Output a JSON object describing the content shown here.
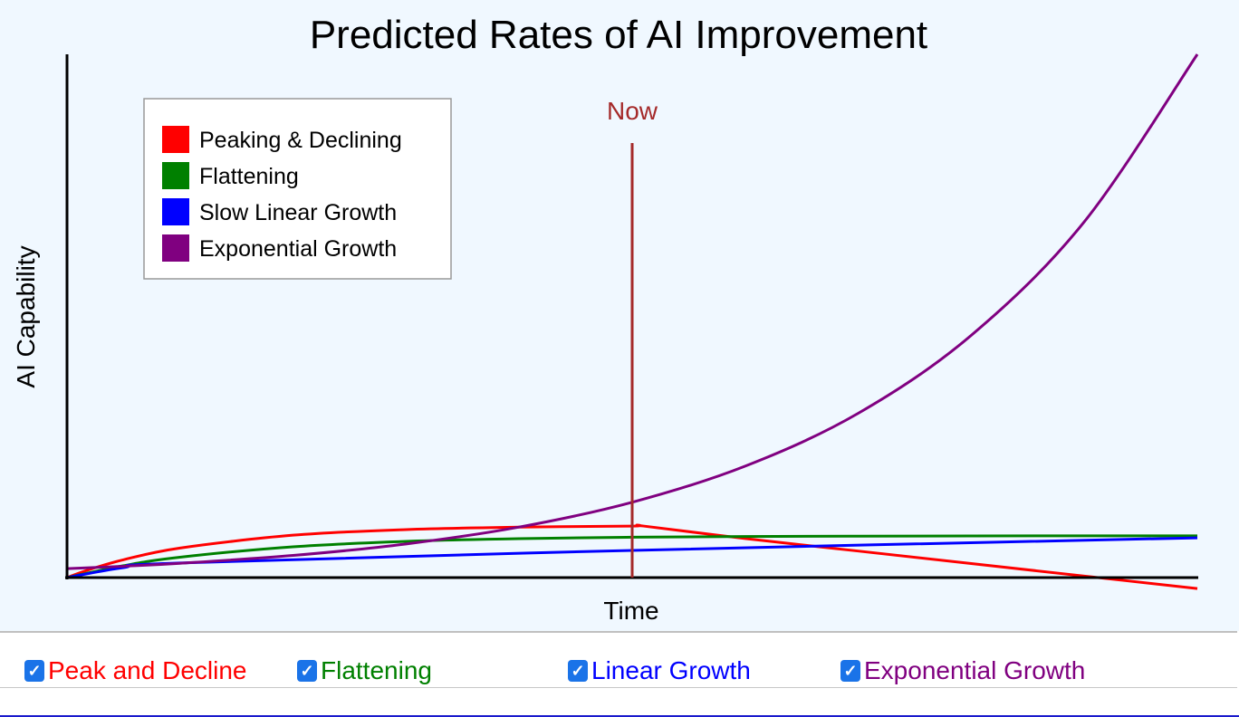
{
  "chart_data": {
    "type": "line",
    "title": "Predicted Rates of AI Improvement",
    "xlabel": "Time",
    "ylabel": "AI Capability",
    "xlim": [
      0,
      100
    ],
    "ylim": [
      0,
      100
    ],
    "grid": false,
    "legend_placement": "top-left",
    "annotation": {
      "label": "Now",
      "x": 50,
      "color": "#a52a2a"
    },
    "series": [
      {
        "name": "Peaking & Declining",
        "color": "#ff0000",
        "x": [
          0,
          2,
          5,
          10,
          20,
          30,
          40,
          50,
          51,
          60,
          70,
          80,
          90,
          100
        ],
        "y": [
          0,
          1.54,
          3.41,
          5.65,
          8.1,
          9.18,
          9.64,
          9.85,
          9.85,
          7.46,
          5.07,
          2.68,
          0.29,
          -2.1
        ]
      },
      {
        "name": "Flattening",
        "color": "#008000",
        "x": [
          0,
          5,
          10,
          20,
          30,
          40,
          50,
          60,
          70,
          80,
          90,
          100
        ],
        "y": [
          0,
          2.27,
          3.89,
          5.89,
          6.92,
          7.45,
          7.71,
          7.85,
          7.92,
          7.96,
          7.98,
          7.99
        ]
      },
      {
        "name": "Slow Linear Growth",
        "color": "#0000ff",
        "x": [
          0,
          5,
          10,
          50,
          100
        ],
        "y": [
          0,
          1.9,
          2.8,
          5.2,
          7.6
        ]
      },
      {
        "name": "Exponential Growth",
        "color": "#800080",
        "x": [
          0,
          5,
          10,
          20,
          30,
          40,
          50,
          60,
          70,
          80,
          90,
          100
        ],
        "y": [
          1.7,
          2.16,
          2.73,
          4.23,
          6.43,
          9.66,
          14.4,
          21.3,
          31.4,
          46.3,
          68.0,
          100
        ]
      }
    ]
  },
  "controls": [
    {
      "label": "Peak and Decline",
      "checked": true,
      "color": "#ff0000"
    },
    {
      "label": "Flattening",
      "checked": true,
      "color": "#008000"
    },
    {
      "label": "Linear Growth",
      "checked": true,
      "color": "#0000ff"
    },
    {
      "label": "Exponential Growth",
      "checked": true,
      "color": "#800080"
    }
  ]
}
